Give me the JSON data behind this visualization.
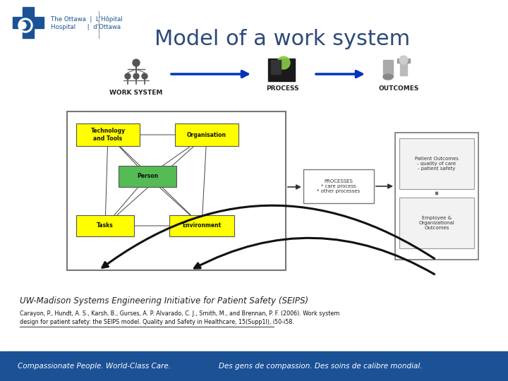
{
  "title": "Model of a work system",
  "title_color": "#2d4a7a",
  "title_fontsize": 22,
  "white": "#ffffff",
  "light_gray": "#f2f2f2",
  "blue_bar_color": "#1b5296",
  "blue_bar_text": "#ffffff",
  "blue_bar_text1": "Compassionate People. World-Class Care.",
  "blue_bar_text2": "Des gens de compassion. Des soins de calibre mondial.",
  "seips_text": "UW-Madison Systems Engineering Initiative for Patient Safety (SEIPS)",
  "citation_line1": "Carayon, P., Hundt, A. S., Karsh, B., Gurses, A. P. Alvarado, C. J., Smith, M., and Brennan, P. F. (2006). Work system",
  "citation_line2": "design for patient safety: the SEIPS model. Quality and Safety in Healthcare, 15(Supp1I), i50-i58.",
  "ws_label": "WORK SYSTEM",
  "process_label": "PROCESS",
  "outcomes_label": "OUTCOMES",
  "yellow": "#ffff00",
  "green_person": "#55bb55",
  "processes_label": "PROCESSES\n* care process\n* other processes",
  "patient_outcomes_label": "Patient Outcomes\n- quality of care\n- patient safety",
  "employee_outcomes_label": "Employee &\nOrganizational\nOutcomes",
  "logo_blue": "#1b5296",
  "arrow_blue": "#0033bb"
}
